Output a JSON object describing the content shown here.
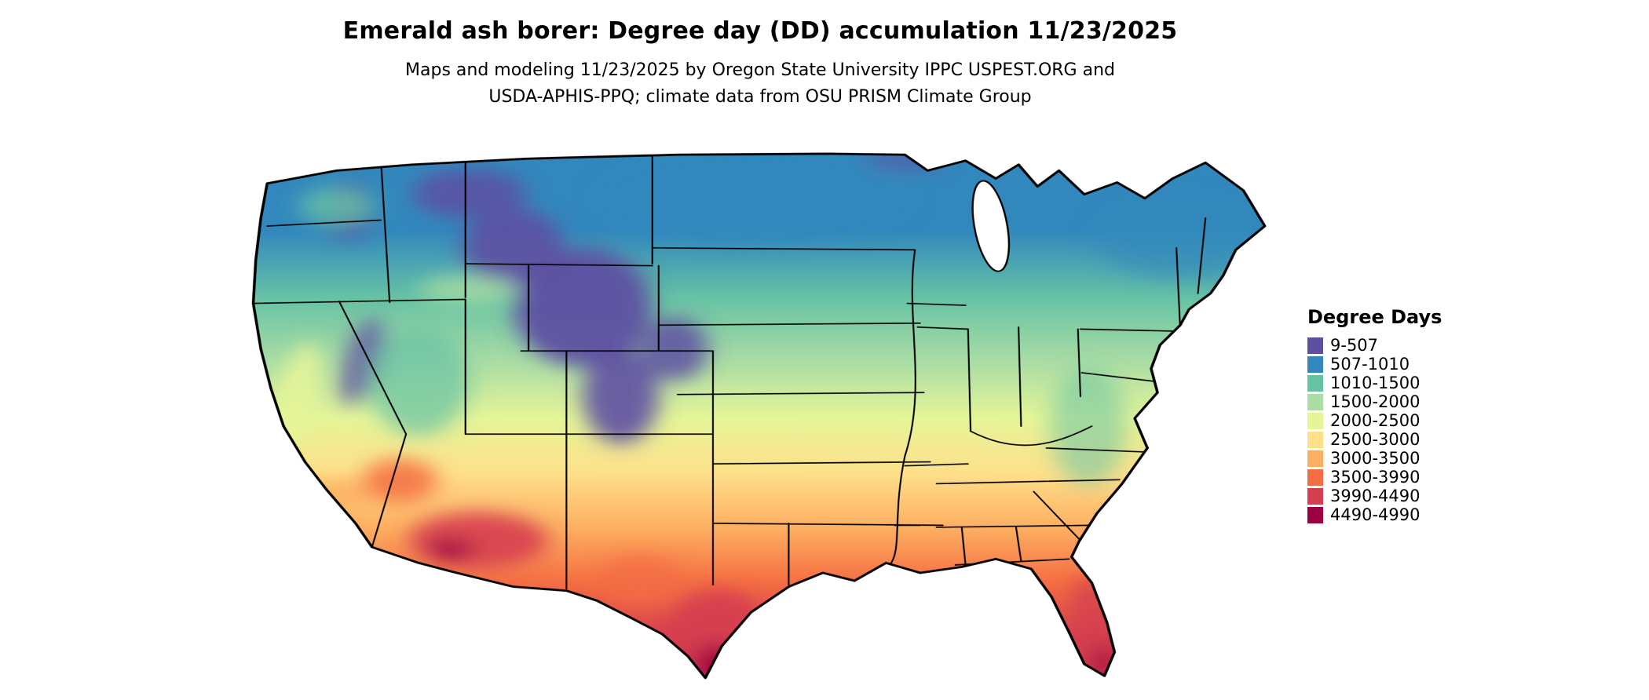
{
  "header": {
    "title": "Emerald ash borer: Degree day (DD) accumulation 11/23/2025",
    "subtitle_line1": "Maps and modeling 11/23/2025 by Oregon State University IPPC USPEST.ORG and",
    "subtitle_line2": "USDA-APHIS-PPQ; climate data from OSU PRISM Climate Group"
  },
  "legend": {
    "title": "Degree Days",
    "items": [
      {
        "label": "9-507",
        "color": "#5e4fa2"
      },
      {
        "label": "507-1010",
        "color": "#3288bd"
      },
      {
        "label": "1010-1500",
        "color": "#66c2a5"
      },
      {
        "label": "1500-2000",
        "color": "#abdda4"
      },
      {
        "label": "2000-2500",
        "color": "#e6f598"
      },
      {
        "label": "2500-3000",
        "color": "#fee08b"
      },
      {
        "label": "3000-3500",
        "color": "#fdae61"
      },
      {
        "label": "3500-3990",
        "color": "#f46d43"
      },
      {
        "label": "3990-4490",
        "color": "#d53e4f"
      },
      {
        "label": "4490-4990",
        "color": "#9e0142"
      }
    ]
  }
}
